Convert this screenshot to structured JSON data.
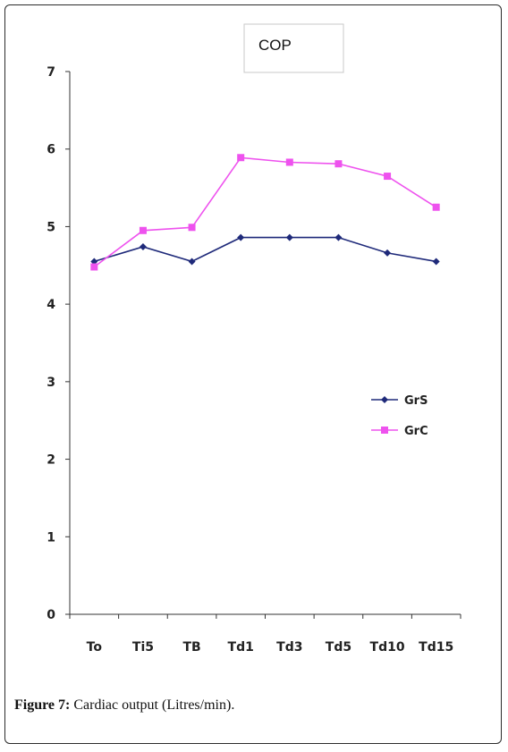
{
  "chart_data": {
    "type": "line",
    "title": "COP",
    "categories": [
      "To",
      "Ti5",
      "TB",
      "Td1",
      "Td3",
      "Td5",
      "Td10",
      "Td15"
    ],
    "ylim": [
      0,
      7
    ],
    "yticks": [
      "0",
      "1",
      "2",
      "3",
      "4",
      "5",
      "6",
      "7"
    ],
    "series": [
      {
        "name": "GrS",
        "color": "#1f2a7a",
        "marker": "diamond",
        "values": [
          4.55,
          4.74,
          4.55,
          4.86,
          4.86,
          4.86,
          4.66,
          4.55
        ]
      },
      {
        "name": "GrC",
        "color": "#ee52ee",
        "marker": "square",
        "values": [
          4.48,
          4.95,
          4.99,
          5.89,
          5.83,
          5.81,
          5.65,
          5.25
        ]
      }
    ],
    "legend": "right"
  },
  "caption": {
    "label": "Figure 7:",
    "text": " Cardiac output (Litres/min)."
  }
}
